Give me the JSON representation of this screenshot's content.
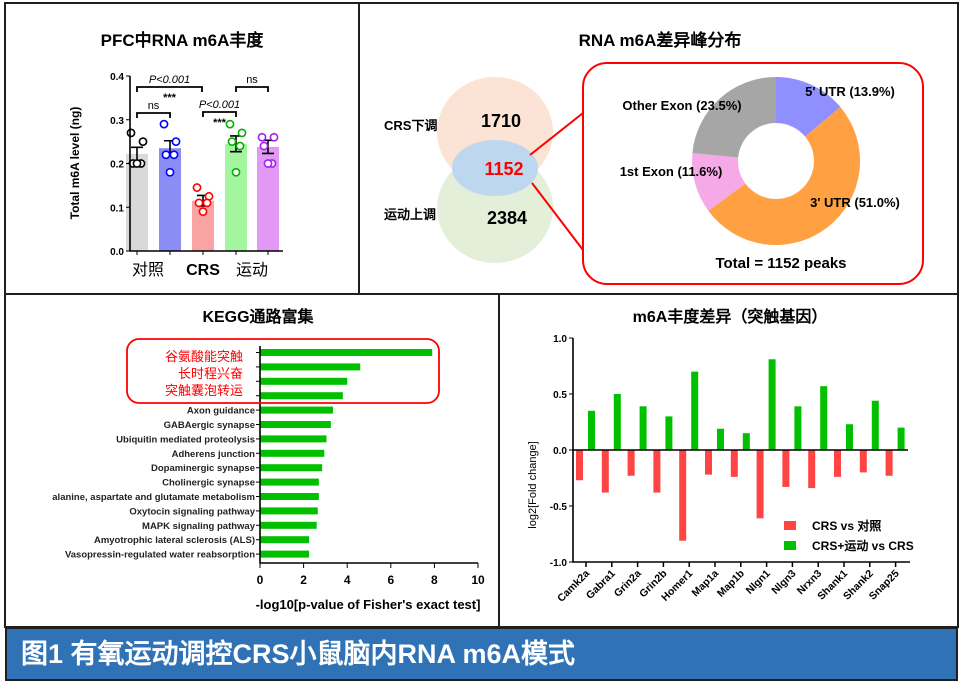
{
  "footer": {
    "caption": "图1 有氧运动调控CRS小鼠脑内RNA  m6A模式"
  },
  "chart_data": [
    {
      "type": "bar",
      "title": "PFC中RNA m6A丰度",
      "ylabel": "Total m6A level (ng)",
      "ylim": [
        0,
        0.4
      ],
      "yticks": [
        "0.0",
        "0.1",
        "0.2",
        "0.3",
        "0.4"
      ],
      "categories": [
        "对照",
        "",
        "CRS",
        "",
        "运动"
      ],
      "group_labels": [
        "对照",
        "CRS",
        "运动"
      ],
      "values": [
        0.222,
        0.235,
        0.115,
        0.245,
        0.238
      ],
      "sem": [
        0.015,
        0.017,
        0.012,
        0.018,
        0.015
      ],
      "points": [
        [
          0.27,
          0.25,
          0.2,
          0.2,
          0.2
        ],
        [
          0.29,
          0.25,
          0.22,
          0.22,
          0.18
        ],
        [
          0.145,
          0.125,
          0.11,
          0.11,
          0.09
        ],
        [
          0.29,
          0.27,
          0.25,
          0.24,
          0.18
        ],
        [
          0.26,
          0.26,
          0.24,
          0.2,
          0.2
        ]
      ],
      "colors": [
        "#d9d9d9",
        "#8c8cf5",
        "#f9a3a3",
        "#a4f59f",
        "#e199f5"
      ],
      "point_colors": [
        "#000000",
        "#0000ff",
        "#ff0000",
        "#00b000",
        "#a020f0"
      ],
      "annotations": [
        {
          "label": "P<0.001",
          "stars": "***",
          "between": [
            0,
            2
          ]
        },
        {
          "label": "ns",
          "between": [
            0,
            1
          ]
        },
        {
          "label": "P<0.001",
          "stars": "***",
          "between": [
            2,
            3
          ]
        },
        {
          "label": "ns",
          "between": [
            3,
            4
          ]
        }
      ]
    },
    {
      "type": "pie",
      "title": "RNA m6A差异峰分布",
      "venn": {
        "top_label": "CRS下调",
        "top_value": "1710",
        "overlap_value": "1152",
        "bottom_label": "运动上调",
        "bottom_value": "2384"
      },
      "slices": [
        {
          "label": "5' UTR (13.9%)",
          "value": 13.9,
          "color": "#8f8fff"
        },
        {
          "label": "3' UTR (51.0%)",
          "value": 51.0,
          "color": "#ffa142"
        },
        {
          "label": "1st Exon (11.6%)",
          "value": 11.6,
          "color": "#f5a9e6"
        },
        {
          "label": "Other Exon (23.5%)",
          "value": 23.5,
          "color": "#a6a6a6"
        }
      ],
      "total_label": "Total = 1152 peaks"
    },
    {
      "type": "bar",
      "orientation": "horizontal",
      "title": "KEGG通路富集",
      "xlabel": "-log10[p-value of Fisher's exact test]",
      "xlim": [
        0,
        10
      ],
      "xticks": [
        "0",
        "2",
        "4",
        "6",
        "8",
        "10"
      ],
      "highlight_labels": [
        "谷氨酸能突触",
        "长时程兴奋",
        "突触囊泡转运"
      ],
      "categories": [
        "",
        "",
        "",
        "",
        "Axon guidance",
        "GABAergic synapse",
        "Ubiquitin mediated proteolysis",
        "Adherens junction",
        "Dopaminergic synapse",
        "Cholinergic synapse",
        "alanine, aspartate and glutamate metabolism",
        "Oxytocin signaling pathway",
        "MAPK signaling pathway",
        "Amyotrophic lateral sclerosis (ALS)",
        "Vasopressin-regulated water reabsorption"
      ],
      "values": [
        7.9,
        4.6,
        4.0,
        3.8,
        3.35,
        3.25,
        3.05,
        2.95,
        2.85,
        2.7,
        2.7,
        2.65,
        2.6,
        2.25,
        2.25
      ],
      "color": "#00c000"
    },
    {
      "type": "bar",
      "title": "m6A丰度差异（突触基因）",
      "ylabel": "log2[Fold change]",
      "ylim": [
        -1,
        1
      ],
      "yticks": [
        "1.0",
        "0.5",
        "0.0",
        "-0.5",
        "-1.0"
      ],
      "categories": [
        "Camk2a",
        "Gabra1",
        "Grin2a",
        "Grin2b",
        "Homer1",
        "Map1a",
        "Map1b",
        "Nlgn1",
        "Nlgn3",
        "Nrxn3",
        "Shank1",
        "Shank2",
        "Snap25"
      ],
      "series": [
        {
          "name": "CRS vs 对照",
          "color": "#ff4444",
          "values": [
            -0.27,
            -0.38,
            -0.23,
            -0.38,
            -0.81,
            -0.22,
            -0.24,
            -0.61,
            -0.33,
            -0.34,
            -0.24,
            -0.2,
            -0.23
          ]
        },
        {
          "name": "CRS+运动 vs CRS",
          "color": "#00c000",
          "values": [
            0.35,
            0.5,
            0.39,
            0.3,
            0.7,
            0.19,
            0.15,
            0.81,
            0.39,
            0.57,
            0.23,
            0.44,
            0.2
          ]
        }
      ],
      "legend": "bottom-right"
    }
  ]
}
